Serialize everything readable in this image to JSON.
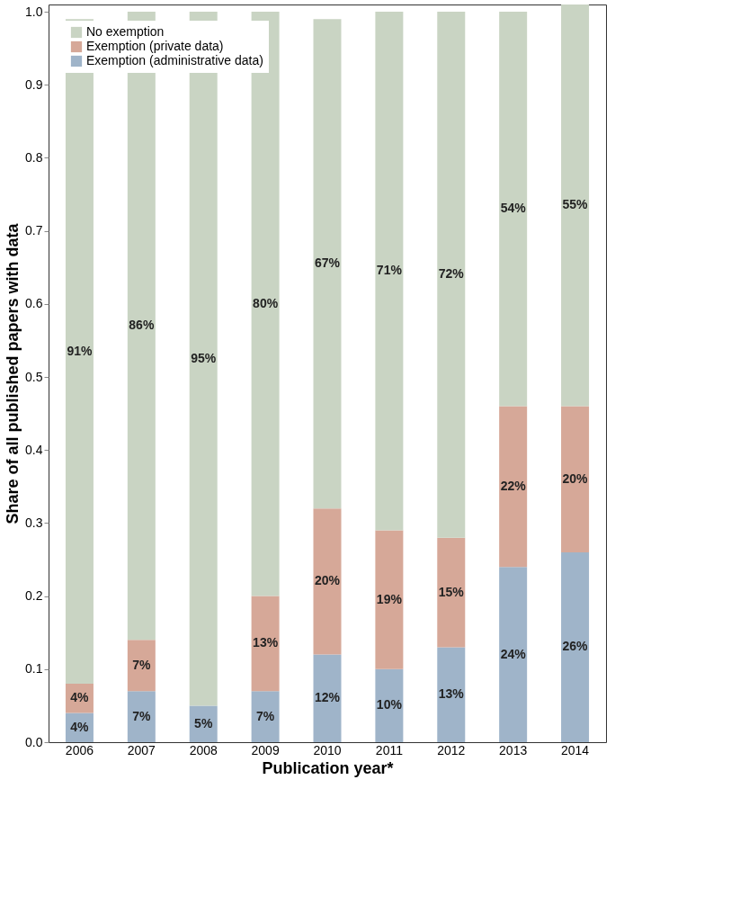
{
  "chart_data": {
    "type": "bar",
    "stacked": true,
    "xlabel": "Publication year*",
    "ylabel": "Share of all published papers with data",
    "categories": [
      "2006",
      "2007",
      "2008",
      "2009",
      "2010",
      "2011",
      "2012",
      "2013",
      "2014"
    ],
    "ylim": [
      0,
      1.01
    ],
    "yticks": [
      {
        "value": 0,
        "label": "0.0"
      },
      0.1,
      0.2,
      0.3,
      0.4,
      0.5,
      0.6,
      0.7,
      0.8,
      0.9,
      {
        "value": 1,
        "label": "1.0"
      }
    ],
    "legend": "top left",
    "grid": false,
    "series": [
      {
        "name": "Exemption (administrative data)",
        "color": "#9fb4c9",
        "values": [
          0.04,
          0.07,
          0.05,
          0.07,
          0.12,
          0.1,
          0.13,
          0.24,
          0.26
        ],
        "value_labels": [
          "4%",
          "7%",
          "5%",
          "7%",
          "12%",
          "10%",
          "13%",
          "24%",
          "26%"
        ]
      },
      {
        "name": "Exemption (private data)",
        "color": "#d6a898",
        "values": [
          0.04,
          0.07,
          0,
          0.13,
          0.2,
          0.19,
          0.15,
          0.22,
          0.2
        ],
        "value_labels": [
          "4%",
          "7%",
          null,
          "13%",
          "20%",
          "19%",
          "15%",
          "22%",
          "20%"
        ]
      },
      {
        "name": "No exemption",
        "color": "#c9d4c3",
        "values": [
          0.91,
          0.86,
          0.95,
          0.8,
          0.67,
          0.71,
          0.72,
          0.54,
          0.55
        ],
        "value_labels": [
          "91%",
          "86%",
          "95%",
          "80%",
          "67%",
          "71%",
          "72%",
          "54%",
          "55%"
        ]
      }
    ]
  }
}
